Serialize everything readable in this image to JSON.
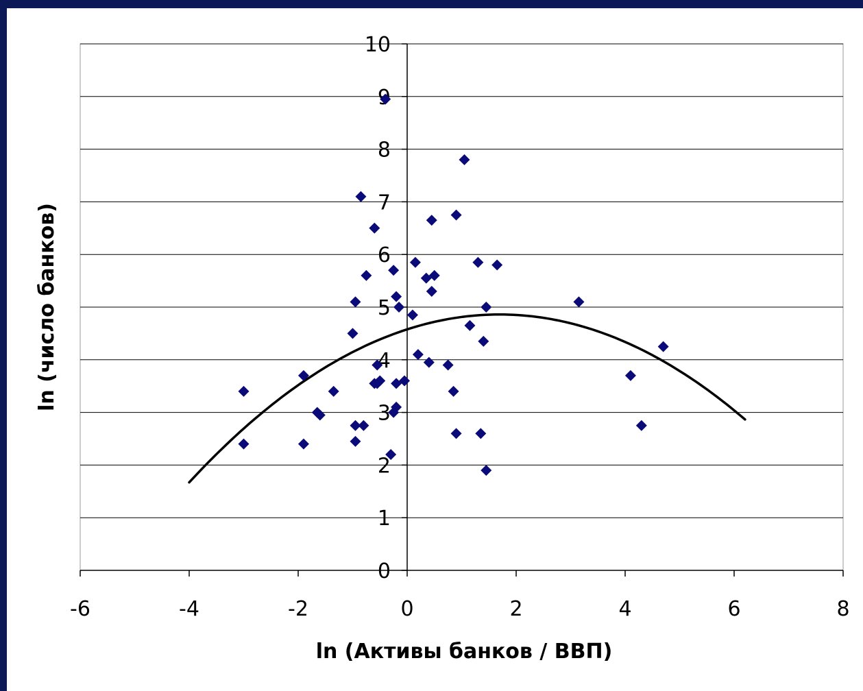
{
  "colors": {
    "frame": "#0b1a57",
    "background": "#ffffff",
    "marker": "#0a0a78",
    "trend": "#000000",
    "grid": "#000000"
  },
  "chart_data": {
    "type": "scatter",
    "title": "",
    "xlabel": "ln (Активы банков / ВВП)",
    "ylabel": "ln (число банков)",
    "xlim": [
      -6,
      8
    ],
    "ylim": [
      0,
      10
    ],
    "x_ticks": [
      "-6",
      "-4",
      "-2",
      "0",
      "2",
      "4",
      "6",
      "8"
    ],
    "y_ticks": [
      "0",
      "1",
      "2",
      "3",
      "4",
      "5",
      "6",
      "7",
      "8",
      "9",
      "10"
    ],
    "grid": "horizontal",
    "marker": "diamond",
    "points": [
      {
        "x": -3.0,
        "y": 3.4
      },
      {
        "x": -3.0,
        "y": 2.4
      },
      {
        "x": -1.9,
        "y": 3.7
      },
      {
        "x": -1.9,
        "y": 2.4
      },
      {
        "x": -1.65,
        "y": 3.0
      },
      {
        "x": -1.6,
        "y": 2.95
      },
      {
        "x": -1.35,
        "y": 3.4
      },
      {
        "x": -1.0,
        "y": 4.5
      },
      {
        "x": -0.95,
        "y": 2.45
      },
      {
        "x": -0.95,
        "y": 2.75
      },
      {
        "x": -0.95,
        "y": 5.1
      },
      {
        "x": -0.85,
        "y": 7.1
      },
      {
        "x": -0.8,
        "y": 2.75
      },
      {
        "x": -0.75,
        "y": 5.6
      },
      {
        "x": -0.6,
        "y": 6.5
      },
      {
        "x": -0.6,
        "y": 3.55
      },
      {
        "x": -0.55,
        "y": 3.55
      },
      {
        "x": -0.55,
        "y": 3.9
      },
      {
        "x": -0.5,
        "y": 3.6
      },
      {
        "x": -0.4,
        "y": 8.95
      },
      {
        "x": -0.3,
        "y": 2.2
      },
      {
        "x": -0.25,
        "y": 5.7
      },
      {
        "x": -0.25,
        "y": 3.0
      },
      {
        "x": -0.2,
        "y": 5.2
      },
      {
        "x": -0.2,
        "y": 3.1
      },
      {
        "x": -0.2,
        "y": 3.55
      },
      {
        "x": -0.15,
        "y": 5.0
      },
      {
        "x": -0.05,
        "y": 3.6
      },
      {
        "x": 0.1,
        "y": 4.85
      },
      {
        "x": 0.15,
        "y": 5.85
      },
      {
        "x": 0.2,
        "y": 4.1
      },
      {
        "x": 0.35,
        "y": 5.55
      },
      {
        "x": 0.4,
        "y": 3.95
      },
      {
        "x": 0.45,
        "y": 5.3
      },
      {
        "x": 0.45,
        "y": 6.65
      },
      {
        "x": 0.5,
        "y": 5.6
      },
      {
        "x": 0.75,
        "y": 3.9
      },
      {
        "x": 0.85,
        "y": 3.4
      },
      {
        "x": 0.9,
        "y": 6.75
      },
      {
        "x": 0.9,
        "y": 2.6
      },
      {
        "x": 1.05,
        "y": 7.8
      },
      {
        "x": 1.15,
        "y": 4.65
      },
      {
        "x": 1.3,
        "y": 5.85
      },
      {
        "x": 1.35,
        "y": 2.6
      },
      {
        "x": 1.4,
        "y": 4.35
      },
      {
        "x": 1.45,
        "y": 5.0
      },
      {
        "x": 1.45,
        "y": 1.9
      },
      {
        "x": 1.65,
        "y": 5.8
      },
      {
        "x": 3.15,
        "y": 5.1
      },
      {
        "x": 4.1,
        "y": 3.7
      },
      {
        "x": 4.3,
        "y": 2.75
      },
      {
        "x": 4.7,
        "y": 4.25
      }
    ],
    "trendline": {
      "type": "quadratic",
      "x_range": [
        -4.0,
        6.2
      ],
      "coefficients": {
        "a": -0.0983,
        "b": 0.3334,
        "c": 4.5775
      }
    }
  }
}
